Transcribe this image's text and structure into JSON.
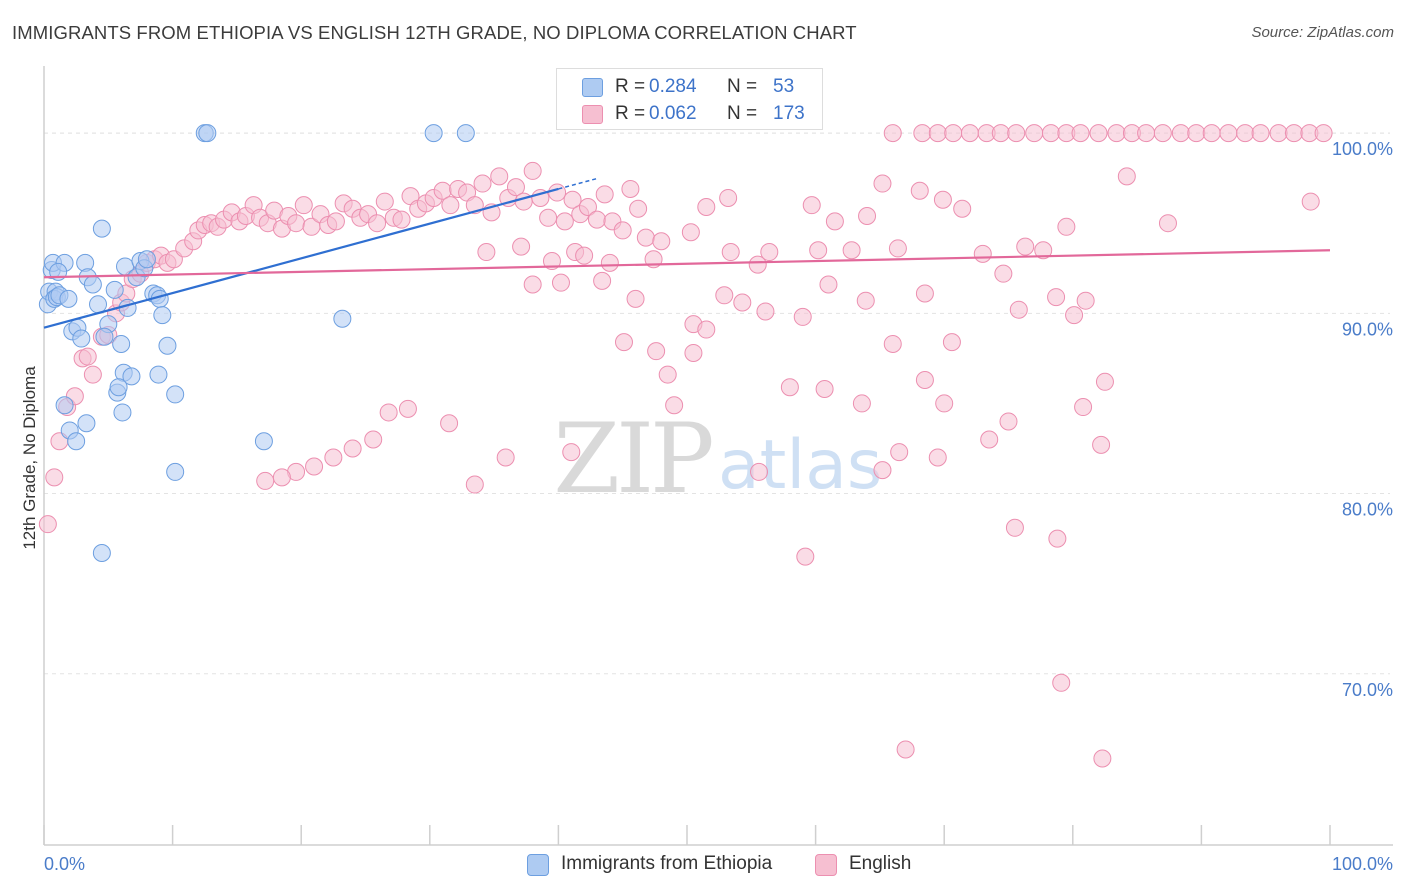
{
  "header": {
    "title": "IMMIGRANTS FROM ETHIOPIA VS ENGLISH 12TH GRADE, NO DIPLOMA CORRELATION CHART",
    "source": "Source: ZipAtlas.com"
  },
  "watermark": {
    "zip": "ZIP",
    "atlas": "atlas"
  },
  "stats": [
    {
      "r_label": "R =",
      "r_value": "0.284",
      "n_label": "N =",
      "n_value": "53"
    },
    {
      "r_label": "R =",
      "r_value": "0.062",
      "n_label": "N =",
      "n_value": "173"
    }
  ],
  "legend": [
    {
      "label": "Immigrants from Ethiopia"
    },
    {
      "label": "English"
    }
  ],
  "colors": {
    "blue_fill": "#aecbf2",
    "blue_stroke": "#6d9fe0",
    "blue_line": "#2f6fd1",
    "pink_fill": "#f6bfd1",
    "pink_stroke": "#ec8fb0",
    "pink_line": "#e2689a",
    "tick_label": "#4a7cc9",
    "grid": "#e3e3e3"
  },
  "chart_data": {
    "type": "scatter",
    "title": "IMMIGRANTS FROM ETHIOPIA VS ENGLISH 12TH GRADE, NO DIPLOMA CORRELATION CHART",
    "xlabel": "",
    "ylabel": "12th Grade, No Diploma",
    "xlim": [
      0,
      100
    ],
    "ylim": [
      60.5,
      103.5
    ],
    "x_tick_labels": [
      "0.0%",
      "100.0%"
    ],
    "y_ticks": [
      70,
      80,
      90,
      100
    ],
    "y_tick_labels": [
      "70.0%",
      "80.0%",
      "90.0%",
      "100.0%"
    ],
    "grid": true,
    "legend_position": "bottom-center",
    "series": [
      {
        "name": "Immigrants from Ethiopia",
        "trend": {
          "x": [
            0,
            40
          ],
          "y": [
            89.2,
            96.9
          ]
        },
        "points": [
          [
            0.3,
            90.5
          ],
          [
            0.4,
            91.2
          ],
          [
            0.6,
            92.4
          ],
          [
            0.7,
            92.8
          ],
          [
            0.9,
            91.2
          ],
          [
            0.8,
            90.8
          ],
          [
            1.0,
            90.9
          ],
          [
            1.2,
            91.0
          ],
          [
            1.6,
            92.8
          ],
          [
            1.1,
            92.3
          ],
          [
            1.9,
            90.8
          ],
          [
            2.2,
            89.0
          ],
          [
            2.6,
            89.2
          ],
          [
            2.9,
            88.6
          ],
          [
            3.2,
            92.8
          ],
          [
            3.4,
            92.0
          ],
          [
            3.8,
            91.6
          ],
          [
            4.2,
            90.5
          ],
          [
            4.5,
            94.7
          ],
          [
            5.0,
            89.4
          ],
          [
            4.7,
            88.7
          ],
          [
            5.5,
            91.3
          ],
          [
            5.7,
            85.6
          ],
          [
            6.0,
            88.3
          ],
          [
            6.3,
            92.6
          ],
          [
            6.5,
            90.3
          ],
          [
            6.2,
            86.7
          ],
          [
            6.8,
            86.5
          ],
          [
            7.2,
            92.0
          ],
          [
            7.5,
            92.9
          ],
          [
            7.8,
            92.5
          ],
          [
            8.0,
            93.0
          ],
          [
            8.5,
            91.1
          ],
          [
            8.8,
            91.0
          ],
          [
            9.0,
            90.8
          ],
          [
            9.2,
            89.9
          ],
          [
            9.6,
            88.2
          ],
          [
            10.2,
            85.5
          ],
          [
            8.9,
            86.6
          ],
          [
            5.8,
            85.9
          ],
          [
            12.5,
            100.0
          ],
          [
            12.7,
            100.0
          ],
          [
            10.2,
            81.2
          ],
          [
            2.0,
            83.5
          ],
          [
            2.5,
            82.9
          ],
          [
            17.1,
            82.9
          ],
          [
            4.5,
            76.7
          ],
          [
            23.2,
            89.7
          ],
          [
            30.3,
            100.0
          ],
          [
            32.8,
            100.0
          ],
          [
            1.6,
            84.9
          ],
          [
            3.3,
            83.9
          ],
          [
            6.1,
            84.5
          ]
        ]
      },
      {
        "name": "English",
        "trend": {
          "x": [
            0,
            100
          ],
          "y": [
            92.0,
            93.5
          ]
        },
        "points": [
          [
            0.3,
            78.3
          ],
          [
            0.8,
            80.9
          ],
          [
            1.2,
            82.9
          ],
          [
            1.8,
            84.8
          ],
          [
            2.4,
            85.4
          ],
          [
            3.0,
            87.5
          ],
          [
            3.4,
            87.6
          ],
          [
            3.8,
            86.6
          ],
          [
            4.5,
            88.7
          ],
          [
            5.0,
            88.8
          ],
          [
            5.6,
            90.0
          ],
          [
            6.0,
            90.6
          ],
          [
            6.4,
            91.1
          ],
          [
            6.9,
            91.9
          ],
          [
            7.5,
            92.2
          ],
          [
            8.0,
            92.8
          ],
          [
            8.6,
            93.0
          ],
          [
            9.1,
            93.2
          ],
          [
            9.6,
            92.8
          ],
          [
            10.1,
            93.0
          ],
          [
            10.9,
            93.6
          ],
          [
            11.6,
            94.0
          ],
          [
            12.0,
            94.6
          ],
          [
            12.5,
            94.9
          ],
          [
            13.0,
            95.0
          ],
          [
            13.5,
            94.8
          ],
          [
            14.0,
            95.2
          ],
          [
            14.6,
            95.6
          ],
          [
            15.2,
            95.1
          ],
          [
            15.7,
            95.4
          ],
          [
            16.3,
            96.0
          ],
          [
            16.8,
            95.3
          ],
          [
            17.4,
            95.0
          ],
          [
            17.9,
            95.7
          ],
          [
            18.5,
            94.7
          ],
          [
            19.0,
            95.4
          ],
          [
            19.6,
            95.0
          ],
          [
            20.2,
            96.0
          ],
          [
            20.8,
            94.8
          ],
          [
            21.5,
            95.5
          ],
          [
            22.1,
            94.9
          ],
          [
            22.7,
            95.1
          ],
          [
            23.3,
            96.1
          ],
          [
            24.0,
            95.8
          ],
          [
            24.6,
            95.3
          ],
          [
            25.2,
            95.5
          ],
          [
            25.9,
            95.0
          ],
          [
            26.5,
            96.2
          ],
          [
            27.2,
            95.3
          ],
          [
            27.8,
            95.2
          ],
          [
            28.5,
            96.5
          ],
          [
            29.1,
            95.8
          ],
          [
            29.7,
            96.1
          ],
          [
            30.3,
            96.4
          ],
          [
            31.0,
            96.8
          ],
          [
            31.6,
            96.0
          ],
          [
            32.2,
            96.9
          ],
          [
            32.9,
            96.7
          ],
          [
            33.5,
            96.0
          ],
          [
            34.1,
            97.2
          ],
          [
            34.8,
            95.6
          ],
          [
            35.4,
            97.6
          ],
          [
            36.1,
            96.4
          ],
          [
            36.7,
            97.0
          ],
          [
            37.3,
            96.2
          ],
          [
            38.0,
            97.9
          ],
          [
            38.6,
            96.4
          ],
          [
            39.2,
            95.3
          ],
          [
            39.9,
            96.7
          ],
          [
            40.5,
            95.1
          ],
          [
            41.1,
            96.3
          ],
          [
            41.7,
            95.5
          ],
          [
            42.3,
            95.9
          ],
          [
            43.0,
            95.2
          ],
          [
            43.6,
            96.6
          ],
          [
            44.2,
            95.1
          ],
          [
            45.0,
            94.6
          ],
          [
            45.6,
            96.9
          ],
          [
            46.2,
            95.8
          ],
          [
            46.8,
            94.2
          ],
          [
            34.4,
            93.4
          ],
          [
            37.1,
            93.7
          ],
          [
            39.5,
            92.9
          ],
          [
            41.3,
            93.4
          ],
          [
            42.0,
            93.2
          ],
          [
            44.0,
            92.8
          ],
          [
            47.4,
            93.0
          ],
          [
            48.0,
            94.0
          ],
          [
            50.3,
            94.5
          ],
          [
            51.5,
            95.9
          ],
          [
            53.2,
            96.4
          ],
          [
            53.4,
            93.4
          ],
          [
            55.5,
            92.7
          ],
          [
            56.4,
            93.4
          ],
          [
            59.7,
            96.0
          ],
          [
            60.2,
            93.5
          ],
          [
            61.5,
            95.1
          ],
          [
            62.8,
            93.5
          ],
          [
            64.0,
            95.4
          ],
          [
            65.2,
            97.2
          ],
          [
            66.4,
            93.6
          ],
          [
            68.1,
            96.8
          ],
          [
            69.9,
            96.3
          ],
          [
            71.4,
            95.8
          ],
          [
            73.0,
            93.3
          ],
          [
            74.6,
            92.2
          ],
          [
            76.3,
            93.7
          ],
          [
            77.7,
            93.5
          ],
          [
            79.5,
            94.8
          ],
          [
            81.0,
            90.7
          ],
          [
            84.2,
            97.6
          ],
          [
            87.4,
            95.0
          ],
          [
            40.2,
            91.7
          ],
          [
            43.4,
            91.8
          ],
          [
            38.0,
            91.6
          ],
          [
            46.0,
            90.8
          ],
          [
            50.5,
            89.4
          ],
          [
            51.5,
            89.1
          ],
          [
            52.9,
            91.0
          ],
          [
            54.3,
            90.6
          ],
          [
            56.1,
            90.1
          ],
          [
            59.0,
            89.8
          ],
          [
            61.0,
            91.6
          ],
          [
            63.9,
            90.7
          ],
          [
            66.0,
            88.3
          ],
          [
            68.5,
            91.1
          ],
          [
            70.6,
            88.4
          ],
          [
            75.8,
            90.2
          ],
          [
            78.7,
            90.9
          ],
          [
            80.1,
            89.9
          ],
          [
            49.0,
            84.9
          ],
          [
            47.6,
            87.9
          ],
          [
            45.1,
            88.4
          ],
          [
            50.5,
            87.8
          ],
          [
            48.5,
            86.6
          ],
          [
            58.0,
            85.9
          ],
          [
            60.7,
            85.8
          ],
          [
            63.6,
            85.0
          ],
          [
            68.5,
            86.3
          ],
          [
            70.0,
            85.0
          ],
          [
            80.8,
            84.8
          ],
          [
            75.0,
            84.0
          ],
          [
            73.5,
            83.0
          ],
          [
            66.5,
            82.3
          ],
          [
            82.5,
            86.2
          ],
          [
            82.2,
            82.7
          ],
          [
            55.6,
            81.2
          ],
          [
            59.2,
            76.5
          ],
          [
            65.2,
            81.3
          ],
          [
            69.5,
            82.0
          ],
          [
            75.5,
            78.1
          ],
          [
            78.8,
            77.5
          ],
          [
            79.1,
            69.5
          ],
          [
            82.3,
            65.3
          ],
          [
            67.0,
            65.8
          ],
          [
            41.0,
            82.3
          ],
          [
            35.9,
            82.0
          ],
          [
            33.5,
            80.5
          ],
          [
            31.5,
            83.9
          ],
          [
            28.3,
            84.7
          ],
          [
            26.8,
            84.5
          ],
          [
            25.6,
            83.0
          ],
          [
            24.0,
            82.5
          ],
          [
            22.5,
            82.0
          ],
          [
            21.0,
            81.5
          ],
          [
            19.6,
            81.2
          ],
          [
            18.5,
            80.9
          ],
          [
            17.2,
            80.7
          ],
          [
            66.0,
            100.0
          ],
          [
            68.3,
            100.0
          ],
          [
            69.5,
            100.0
          ],
          [
            70.7,
            100.0
          ],
          [
            72.0,
            100.0
          ],
          [
            73.3,
            100.0
          ],
          [
            74.4,
            100.0
          ],
          [
            75.6,
            100.0
          ],
          [
            77.0,
            100.0
          ],
          [
            78.3,
            100.0
          ],
          [
            79.5,
            100.0
          ],
          [
            80.6,
            100.0
          ],
          [
            82.0,
            100.0
          ],
          [
            83.4,
            100.0
          ],
          [
            84.6,
            100.0
          ],
          [
            85.7,
            100.0
          ],
          [
            87.0,
            100.0
          ],
          [
            88.4,
            100.0
          ],
          [
            89.6,
            100.0
          ],
          [
            90.8,
            100.0
          ],
          [
            92.1,
            100.0
          ],
          [
            93.4,
            100.0
          ],
          [
            94.6,
            100.0
          ],
          [
            96.0,
            100.0
          ],
          [
            97.2,
            100.0
          ],
          [
            98.4,
            100.0
          ],
          [
            99.5,
            100.0
          ],
          [
            98.5,
            96.2
          ]
        ]
      }
    ]
  }
}
